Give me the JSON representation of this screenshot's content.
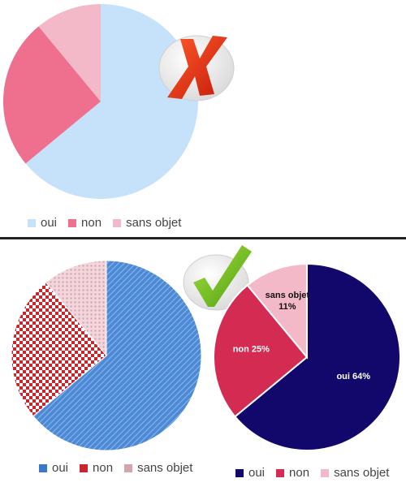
{
  "chart_data": [
    {
      "type": "pie",
      "title": "",
      "categories": [
        "oui",
        "non",
        "sans objet"
      ],
      "values": [
        64,
        25,
        11
      ],
      "colors": [
        "#c6e2fb",
        "#ee6f8e",
        "#f4b9c8"
      ],
      "legend_position": "bottom",
      "style": "flat",
      "badge": "cross-icon"
    },
    {
      "type": "pie",
      "title": "",
      "categories": [
        "oui",
        "non",
        "sans objet"
      ],
      "values": [
        64,
        25,
        11
      ],
      "colors": [
        "#3b78c8",
        "#c8262f",
        "#d4a5ad"
      ],
      "legend_position": "bottom",
      "style": "patterned",
      "badge": "checkmark-icon"
    },
    {
      "type": "pie",
      "title": "",
      "categories": [
        "oui",
        "non",
        "sans objet"
      ],
      "values": [
        64,
        25,
        11
      ],
      "colors": [
        "#12086b",
        "#d42b52",
        "#f4b9c8"
      ],
      "data_labels": [
        "oui 64%",
        "non 25%",
        "sans objet 11%"
      ],
      "legend_position": "bottom",
      "style": "labeled"
    }
  ]
}
